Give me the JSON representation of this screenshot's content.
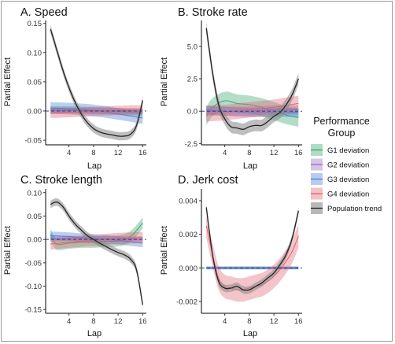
{
  "legend": {
    "title_line1": "Performance",
    "title_line2": "Group",
    "items": [
      {
        "label": "G1 deviation",
        "color": "#3aa66e"
      },
      {
        "label": "G2 deviation",
        "color": "#9b6bc4"
      },
      {
        "label": "G3 deviation",
        "color": "#4a7fd6"
      },
      {
        "label": "G4 deviation",
        "color": "#e06370"
      },
      {
        "label": "Population trend",
        "color": "#222222"
      }
    ]
  },
  "chart_data": [
    {
      "type": "line",
      "title": "A. Speed",
      "xlabel": "Lap",
      "ylabel": "Partial Effect",
      "xlim": [
        0.2,
        16.6
      ],
      "ylim": [
        -0.058,
        0.155
      ],
      "xticks": [
        4,
        8,
        12,
        16
      ],
      "xtick_labels": [
        "4",
        "8",
        "12",
        "16"
      ],
      "yticks": [
        0.15,
        0.1,
        0.05,
        0.0,
        -0.05
      ],
      "ytick_labels": [
        "0.15",
        "0.10",
        "0.05",
        "0.00",
        "-0.05"
      ],
      "reference_line": 0,
      "series": [
        {
          "name": "G1 deviation",
          "color": "#3aa66e",
          "x": [
            1,
            4,
            8,
            12,
            16
          ],
          "y": [
            0.002,
            0.002,
            0.001,
            -0.001,
            -0.003
          ],
          "band": 0.006
        },
        {
          "name": "G2 deviation",
          "color": "#9b6bc4",
          "x": [
            1,
            4,
            8,
            12,
            16
          ],
          "y": [
            0.001,
            0.001,
            0.0,
            0.0,
            0.0
          ],
          "band": 0.005
        },
        {
          "name": "G3 deviation",
          "color": "#4a7fd6",
          "x": [
            1,
            4,
            8,
            12,
            16
          ],
          "y": [
            0.005,
            0.004,
            0.001,
            -0.005,
            -0.012
          ],
          "band": 0.01
        },
        {
          "name": "G4 deviation",
          "color": "#e06370",
          "x": [
            1,
            4,
            8,
            12,
            16
          ],
          "y": [
            -0.004,
            -0.003,
            -0.001,
            0.001,
            0.002
          ],
          "band": 0.008
        },
        {
          "name": "Population trend",
          "color": "#222222",
          "x": [
            1,
            2,
            3,
            4,
            5,
            6,
            7,
            8,
            9,
            10,
            11,
            12,
            13,
            14,
            15,
            16
          ],
          "y": [
            0.14,
            0.105,
            0.07,
            0.04,
            0.015,
            -0.005,
            -0.02,
            -0.03,
            -0.036,
            -0.039,
            -0.041,
            -0.043,
            -0.043,
            -0.04,
            -0.025,
            0.018
          ],
          "band": 0.007
        }
      ]
    },
    {
      "type": "line",
      "title": "B. Stroke rate",
      "xlabel": "Lap",
      "ylabel": "Partial Effect",
      "xlim": [
        0.2,
        16.6
      ],
      "ylim": [
        -2.6,
        7.0
      ],
      "xticks": [
        4,
        8,
        12,
        16
      ],
      "xtick_labels": [
        "4",
        "8",
        "12",
        "16"
      ],
      "yticks": [
        5.0,
        2.5,
        0.0,
        -2.5
      ],
      "ytick_labels": [
        "5.0",
        "2.5",
        "0.0",
        "-2.5"
      ],
      "reference_line": 0,
      "series": [
        {
          "name": "G1 deviation",
          "color": "#3aa66e",
          "x": [
            1,
            2,
            4,
            6,
            8,
            10,
            12,
            14,
            16
          ],
          "y": [
            -0.4,
            0.3,
            0.8,
            0.6,
            0.5,
            0.3,
            0.0,
            -0.3,
            -0.5
          ],
          "band": 0.7
        },
        {
          "name": "G2 deviation",
          "color": "#9b6bc4",
          "x": [
            1,
            4,
            8,
            12,
            16
          ],
          "y": [
            0.0,
            0.0,
            0.0,
            0.1,
            0.1
          ],
          "band": 0.35
        },
        {
          "name": "G3 deviation",
          "color": "#4a7fd6",
          "x": [
            1,
            4,
            8,
            12,
            16
          ],
          "y": [
            0.1,
            0.0,
            -0.1,
            -0.1,
            -0.1
          ],
          "band": 0.35
        },
        {
          "name": "G4 deviation",
          "color": "#e06370",
          "x": [
            1,
            4,
            8,
            12,
            16
          ],
          "y": [
            -0.2,
            -0.1,
            0.1,
            0.3,
            0.6
          ],
          "band": 0.6
        },
        {
          "name": "Population trend",
          "color": "#222222",
          "x": [
            1,
            2,
            3,
            4,
            5,
            6,
            7,
            8,
            9,
            10,
            11,
            12,
            13,
            14,
            15,
            16
          ],
          "y": [
            6.4,
            3.0,
            0.5,
            -0.6,
            -1.2,
            -1.3,
            -1.4,
            -1.2,
            -1.1,
            -1.1,
            -0.8,
            -0.4,
            -0.1,
            0.5,
            1.3,
            2.5
          ],
          "band": 0.45
        }
      ]
    },
    {
      "type": "line",
      "title": "C. Stroke length",
      "xlabel": "Lap",
      "ylabel": "Partial Effect",
      "xlim": [
        0.2,
        16.6
      ],
      "ylim": [
        -0.158,
        0.108
      ],
      "xticks": [
        4,
        8,
        12,
        16
      ],
      "xtick_labels": [
        "4",
        "8",
        "12",
        "16"
      ],
      "yticks": [
        0.1,
        0.05,
        0.0,
        -0.05,
        -0.1,
        -0.15
      ],
      "ytick_labels": [
        "0.10",
        "0.05",
        "0.00",
        "-0.05",
        "-0.10",
        "-0.15"
      ],
      "reference_line": 0,
      "series": [
        {
          "name": "G1 deviation",
          "color": "#3aa66e",
          "x": [
            1,
            2,
            4,
            6,
            8,
            10,
            12,
            14,
            16
          ],
          "y": [
            0.01,
            -0.01,
            -0.008,
            -0.006,
            -0.006,
            -0.004,
            -0.003,
            0.006,
            0.035
          ],
          "band": 0.012
        },
        {
          "name": "G2 deviation",
          "color": "#9b6bc4",
          "x": [
            1,
            4,
            8,
            12,
            16
          ],
          "y": [
            0.002,
            0.002,
            0.001,
            0.001,
            0.001
          ],
          "band": 0.006
        },
        {
          "name": "G3 deviation",
          "color": "#4a7fd6",
          "x": [
            1,
            4,
            8,
            12,
            16
          ],
          "y": [
            0.008,
            0.006,
            0.002,
            -0.002,
            -0.008
          ],
          "band": 0.009
        },
        {
          "name": "G4 deviation",
          "color": "#e06370",
          "x": [
            1,
            4,
            8,
            12,
            16
          ],
          "y": [
            -0.01,
            -0.006,
            -0.002,
            0.002,
            0.004
          ],
          "band": 0.012
        },
        {
          "name": "Population trend",
          "color": "#222222",
          "x": [
            1,
            2,
            3,
            4,
            5,
            6,
            7,
            8,
            9,
            10,
            11,
            12,
            13,
            14,
            15,
            16
          ],
          "y": [
            0.075,
            0.08,
            0.07,
            0.05,
            0.033,
            0.02,
            0.008,
            0.0,
            -0.008,
            -0.015,
            -0.022,
            -0.028,
            -0.033,
            -0.042,
            -0.065,
            -0.14
          ],
          "band": 0.008
        }
      ]
    },
    {
      "type": "line",
      "title": "D. Jerk cost",
      "xlabel": "Lap",
      "ylabel": "Partial Effect",
      "xlim": [
        0.2,
        16.6
      ],
      "ylim": [
        -0.0027,
        0.0047
      ],
      "xticks": [
        4,
        8,
        12,
        16
      ],
      "xtick_labels": [
        "4",
        "8",
        "12",
        "16"
      ],
      "yticks": [
        0.004,
        0.002,
        0.0,
        -0.002
      ],
      "ytick_labels": [
        "0.004",
        "0.002",
        "0.000",
        "-0.002"
      ],
      "reference_line": 0,
      "series": [
        {
          "name": "G1 deviation",
          "color": "#3aa66e",
          "x": [
            1,
            4,
            8,
            12,
            16
          ],
          "y": [
            0.0,
            0.0,
            0.0,
            0.0,
            0.0
          ],
          "band": 8e-05
        },
        {
          "name": "G2 deviation",
          "color": "#9b6bc4",
          "x": [
            1,
            4,
            8,
            12,
            16
          ],
          "y": [
            0.0,
            0.0,
            0.0,
            0.0,
            0.0
          ],
          "band": 8e-05
        },
        {
          "name": "G3 deviation",
          "color": "#4a7fd6",
          "x": [
            1,
            4,
            8,
            12,
            16
          ],
          "y": [
            0.0,
            0.0,
            0.0,
            0.0,
            0.0
          ],
          "band": 8e-05
        },
        {
          "name": "G4 deviation",
          "color": "#e06370",
          "x": [
            1,
            2,
            3,
            4,
            5,
            6,
            7,
            8,
            9,
            10,
            11,
            12,
            13,
            14,
            15,
            16
          ],
          "y": [
            0.0025,
            0.0008,
            -0.0006,
            -0.0011,
            -0.0012,
            -0.0013,
            -0.0013,
            -0.0012,
            -0.0011,
            -0.001,
            -0.0008,
            -0.0005,
            -0.0001,
            0.0004,
            0.001,
            0.0019
          ],
          "band": 0.0007
        },
        {
          "name": "Population trend",
          "color": "#222222",
          "x": [
            1,
            2,
            3,
            4,
            5,
            6,
            7,
            8,
            9,
            10,
            11,
            12,
            13,
            14,
            15,
            16
          ],
          "y": [
            0.0036,
            0.0008,
            -0.0008,
            -0.0012,
            -0.0012,
            -0.0011,
            -0.0013,
            -0.0013,
            -0.0011,
            -0.0009,
            -0.0006,
            -0.0003,
            0.0002,
            0.0008,
            0.0018,
            0.0034
          ],
          "band": 0.00022
        }
      ]
    }
  ]
}
